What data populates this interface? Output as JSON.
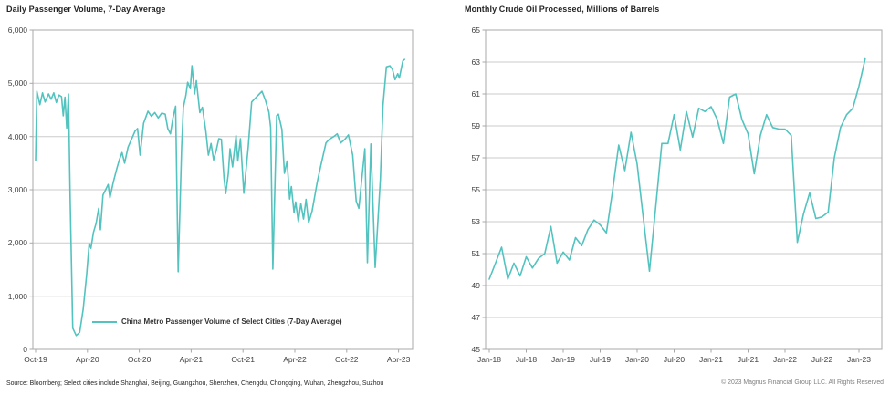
{
  "page": {
    "background": "#FFFFFF"
  },
  "colors": {
    "line": "#53C3BF",
    "grid": "#CBCBCB",
    "border": "#A8A8A8",
    "title_text": "#262626",
    "tick_label_text": "#3F3F3F",
    "source_text": "#262626",
    "copyright_text": "#7F7F7F"
  },
  "footer": {
    "source_text": "Source: Bloomberg; Select cities include Shanghai, Beijing, Guangzhou, Shenzhen, Chengdu, Chongqing, Wuhan, Zhengzhou, Suzhou",
    "copyright_text": "© 2023 Magnus Financial Group LLC. All Rights Reserved"
  },
  "chart_data": [
    {
      "id": "metro",
      "type": "line",
      "title": "Daily Passenger Volume, 7-Day Average",
      "legend_position": "inside-bottom-left",
      "grid": true,
      "ylim": [
        0,
        6000
      ],
      "y_ticks": [
        0,
        1000,
        2000,
        3000,
        4000,
        5000,
        6000
      ],
      "y_tick_labels": [
        "0",
        "1,000",
        "2,000",
        "3,000",
        "4,000",
        "5,000",
        "6,000"
      ],
      "x_tick_labels": [
        "Oct-19",
        "Apr-20",
        "Oct-20",
        "Apr-21",
        "Oct-21",
        "Apr-22",
        "Oct-22",
        "Apr-23"
      ],
      "x_unit": "months since Oct-2019",
      "x_tick_interval_months": 6,
      "series": [
        {
          "name": "China Metro Passenger Volume of Select Cities (7-Day Average)",
          "points": [
            [
              0,
              3550
            ],
            [
              0.15,
              4850
            ],
            [
              0.5,
              4600
            ],
            [
              0.8,
              4820
            ],
            [
              1.1,
              4650
            ],
            [
              1.5,
              4800
            ],
            [
              1.8,
              4700
            ],
            [
              2.1,
              4820
            ],
            [
              2.4,
              4640
            ],
            [
              2.7,
              4780
            ],
            [
              3.0,
              4750
            ],
            [
              3.2,
              4390
            ],
            [
              3.4,
              4740
            ],
            [
              3.6,
              4160
            ],
            [
              3.8,
              4800
            ],
            [
              4.0,
              2800
            ],
            [
              4.3,
              400
            ],
            [
              4.7,
              260
            ],
            [
              5.1,
              320
            ],
            [
              5.5,
              750
            ],
            [
              5.9,
              1400
            ],
            [
              6.2,
              1990
            ],
            [
              6.4,
              1900
            ],
            [
              6.7,
              2200
            ],
            [
              7.0,
              2370
            ],
            [
              7.3,
              2650
            ],
            [
              7.5,
              2250
            ],
            [
              7.8,
              2900
            ],
            [
              8.1,
              3000
            ],
            [
              8.4,
              3100
            ],
            [
              8.6,
              2850
            ],
            [
              9.0,
              3150
            ],
            [
              9.4,
              3400
            ],
            [
              9.7,
              3565
            ],
            [
              10.0,
              3700
            ],
            [
              10.3,
              3500
            ],
            [
              10.7,
              3800
            ],
            [
              11.1,
              3950
            ],
            [
              11.5,
              4100
            ],
            [
              11.8,
              4150
            ],
            [
              12.1,
              3650
            ],
            [
              12.5,
              4250
            ],
            [
              13.0,
              4475
            ],
            [
              13.4,
              4380
            ],
            [
              13.8,
              4450
            ],
            [
              14.2,
              4350
            ],
            [
              14.6,
              4440
            ],
            [
              15.0,
              4420
            ],
            [
              15.3,
              4150
            ],
            [
              15.6,
              4050
            ],
            [
              15.9,
              4350
            ],
            [
              16.2,
              4570
            ],
            [
              16.5,
              1460
            ],
            [
              16.9,
              3800
            ],
            [
              17.1,
              4550
            ],
            [
              17.4,
              4780
            ],
            [
              17.6,
              5020
            ],
            [
              17.9,
              4900
            ],
            [
              18.1,
              5330
            ],
            [
              18.4,
              4800
            ],
            [
              18.6,
              5050
            ],
            [
              19.0,
              4450
            ],
            [
              19.3,
              4550
            ],
            [
              19.7,
              4100
            ],
            [
              20.0,
              3650
            ],
            [
              20.3,
              3870
            ],
            [
              20.6,
              3560
            ],
            [
              20.9,
              3740
            ],
            [
              21.2,
              3960
            ],
            [
              21.5,
              3950
            ],
            [
              21.8,
              3220
            ],
            [
              22.0,
              2930
            ],
            [
              22.3,
              3300
            ],
            [
              22.5,
              3770
            ],
            [
              22.8,
              3430
            ],
            [
              23.2,
              4020
            ],
            [
              23.4,
              3540
            ],
            [
              23.7,
              3960
            ],
            [
              24.1,
              2935
            ],
            [
              24.6,
              3800
            ],
            [
              25.0,
              4650
            ],
            [
              25.6,
              4750
            ],
            [
              26.2,
              4850
            ],
            [
              26.6,
              4680
            ],
            [
              27.0,
              4455
            ],
            [
              27.2,
              4170
            ],
            [
              27.45,
              1510
            ],
            [
              27.9,
              4390
            ],
            [
              28.1,
              4420
            ],
            [
              28.5,
              4135
            ],
            [
              28.8,
              3310
            ],
            [
              29.1,
              3540
            ],
            [
              29.4,
              2825
            ],
            [
              29.6,
              3060
            ],
            [
              29.9,
              2570
            ],
            [
              30.1,
              2770
            ],
            [
              30.4,
              2400
            ],
            [
              30.7,
              2740
            ],
            [
              31.0,
              2450
            ],
            [
              31.3,
              2820
            ],
            [
              31.6,
              2380
            ],
            [
              32.0,
              2600
            ],
            [
              32.6,
              3150
            ],
            [
              33.0,
              3450
            ],
            [
              33.6,
              3880
            ],
            [
              34.0,
              3950
            ],
            [
              34.5,
              4000
            ],
            [
              34.9,
              4050
            ],
            [
              35.3,
              3880
            ],
            [
              35.8,
              3950
            ],
            [
              36.2,
              4030
            ],
            [
              36.7,
              3650
            ],
            [
              37.1,
              2790
            ],
            [
              37.4,
              2650
            ],
            [
              38.1,
              3770
            ],
            [
              38.4,
              1630
            ],
            [
              38.8,
              3860
            ],
            [
              39.3,
              1540
            ],
            [
              39.9,
              3200
            ],
            [
              40.2,
              4590
            ],
            [
              40.6,
              5310
            ],
            [
              41.0,
              5330
            ],
            [
              41.3,
              5260
            ],
            [
              41.6,
              5070
            ],
            [
              41.9,
              5180
            ],
            [
              42.1,
              5100
            ],
            [
              42.5,
              5420
            ],
            [
              42.7,
              5450
            ]
          ]
        }
      ]
    },
    {
      "id": "crude",
      "type": "line",
      "title": "Monthly Crude Oil Processed, Millions of Barrels",
      "grid": true,
      "ylim": [
        45,
        65
      ],
      "y_ticks": [
        45,
        47,
        49,
        51,
        53,
        55,
        57,
        59,
        61,
        63,
        65
      ],
      "y_tick_labels": [
        "45",
        "47",
        "49",
        "51",
        "53",
        "55",
        "57",
        "59",
        "61",
        "63",
        "65"
      ],
      "x_tick_labels": [
        "Jan-18",
        "Jul-18",
        "Jan-19",
        "Jul-19",
        "Jan-20",
        "Jul-20",
        "Jan-21",
        "Jul-21",
        "Jan-22",
        "Jul-22",
        "Jan-23"
      ],
      "x_unit": "monthly from Jan-2018 to Feb-2023",
      "x_tick_interval_months": 6,
      "series": [
        {
          "name": "Monthly Crude Oil Processed",
          "values": [
            49.4,
            50.4,
            51.4,
            49.4,
            50.4,
            49.6,
            50.8,
            50.1,
            50.7,
            51.0,
            52.7,
            50.4,
            51.1,
            50.6,
            52.0,
            51.5,
            52.5,
            53.1,
            52.8,
            52.3,
            54.9,
            57.8,
            56.2,
            58.6,
            56.6,
            53.2,
            49.9,
            53.9,
            57.9,
            57.9,
            59.7,
            57.5,
            59.9,
            58.3,
            60.1,
            59.9,
            60.2,
            59.4,
            57.9,
            60.8,
            61.0,
            59.4,
            58.5,
            56.0,
            58.4,
            59.7,
            58.9,
            58.8,
            58.8,
            58.4,
            51.7,
            53.5,
            54.8,
            53.2,
            53.3,
            53.6,
            57.0,
            58.9,
            59.7,
            60.1,
            61.5,
            63.2
          ]
        }
      ]
    }
  ]
}
